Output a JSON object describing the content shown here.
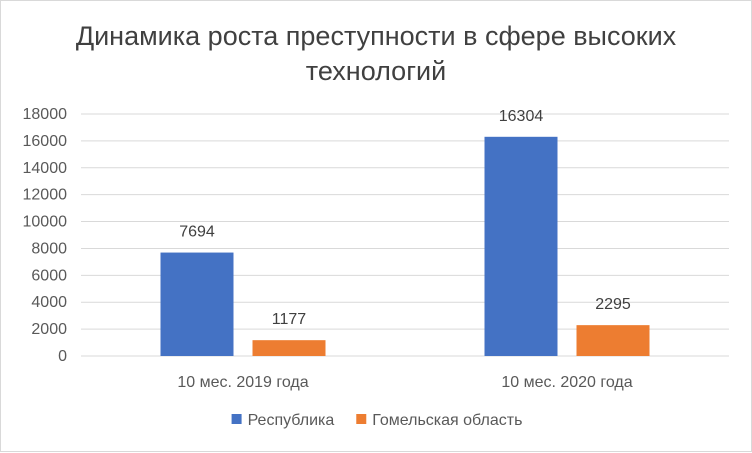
{
  "chart_data": {
    "type": "bar",
    "title": "Динамика роста преступности в сфере высоких технологий",
    "categories": [
      "10 мес. 2019 года",
      "10 мес. 2020 года"
    ],
    "series": [
      {
        "name": "Республика",
        "values": [
          7694,
          16304
        ],
        "color": "#4472c4"
      },
      {
        "name": "Гомельская область",
        "values": [
          1177,
          2295
        ],
        "color": "#ed7d31"
      }
    ],
    "ylim": [
      0,
      18000
    ],
    "yticks": [
      0,
      2000,
      4000,
      6000,
      8000,
      10000,
      12000,
      14000,
      16000,
      18000
    ],
    "grid": true,
    "legend": "bottom",
    "data_labels": true,
    "xlabel": "",
    "ylabel": ""
  }
}
